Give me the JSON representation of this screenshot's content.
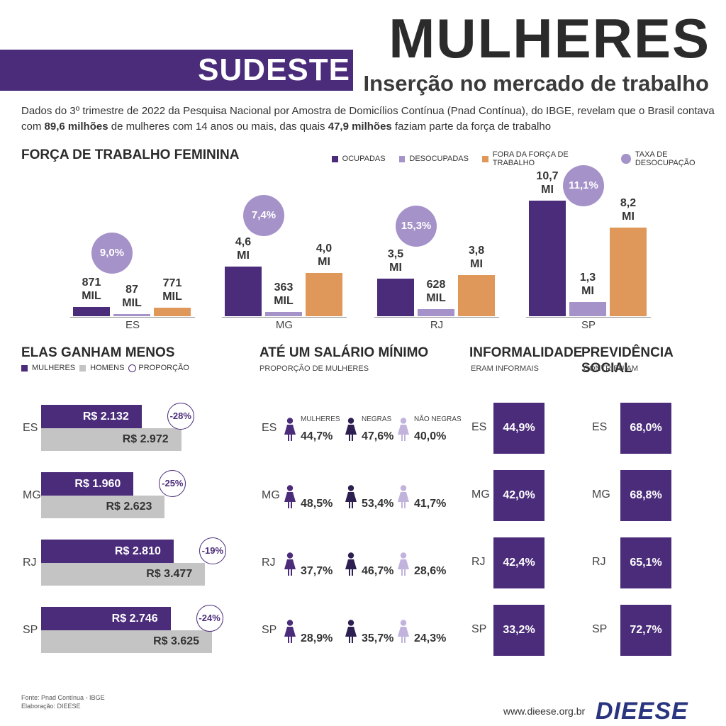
{
  "header": {
    "title": "MULHERES",
    "subtitle": "Inserção no mercado de trabalho",
    "region": "SUDESTE"
  },
  "intro": {
    "part1": "Dados do 3º trimestre de 2022 da Pesquisa Nacional por Amostra de Domicílios Contínua (Pnad Contínua), do IBGE, revelam que o Brasil contava com ",
    "bold1": "89,6 milhões",
    "part2": " de mulheres com 14 anos ou mais, das quais ",
    "bold2": "47,9 milhões",
    "part3": " faziam parte da força de trabalho"
  },
  "colors": {
    "ocupadas": "#4a2c7a",
    "desocupadas": "#a592c9",
    "fora": "#e0985a",
    "taxa": "#a592c9",
    "homens": "#c4c4c4"
  },
  "chart_data": [
    {
      "type": "bar",
      "title": "FORÇA DE TRABALHO FEMININA",
      "categories": [
        "ES",
        "MG",
        "RJ",
        "SP"
      ],
      "series": [
        {
          "name": "OCUPADAS",
          "values": [
            0.871,
            4.6,
            3.5,
            10.7
          ],
          "labels": [
            "871 MIL",
            "4,6 MI",
            "3,5 MI",
            "10,7 MI"
          ]
        },
        {
          "name": "DESOCUPADAS",
          "values": [
            0.087,
            0.363,
            0.628,
            1.3
          ],
          "labels": [
            "87 MIL",
            "363 MIL",
            "628 MIL",
            "1,3 MI"
          ]
        },
        {
          "name": "FORA DA FORÇA DE TRABALHO",
          "values": [
            0.771,
            4.0,
            3.8,
            8.2
          ],
          "labels": [
            "771 MIL",
            "4,0 MI",
            "3,8 MI",
            "8,2 MI"
          ]
        }
      ],
      "rate": {
        "name": "TAXA DE DESOCUPAÇÃO",
        "values": [
          "9,0%",
          "7,4%",
          "15,3%",
          "11,1%"
        ]
      },
      "unit": "milhões",
      "legend": "top-right"
    },
    {
      "type": "bar",
      "title": "ELAS GANHAM MENOS",
      "orientation": "horizontal",
      "categories": [
        "ES",
        "MG",
        "RJ",
        "SP"
      ],
      "series": [
        {
          "name": "MULHERES",
          "values": [
            2132,
            1960,
            2810,
            2746
          ],
          "labels": [
            "R$ 2.132",
            "R$ 1.960",
            "R$ 2.810",
            "R$ 2.746"
          ]
        },
        {
          "name": "HOMENS",
          "values": [
            2972,
            2623,
            3477,
            3625
          ],
          "labels": [
            "R$ 2.972",
            "R$ 2.623",
            "R$ 3.477",
            "R$ 3.625"
          ]
        }
      ],
      "proportion": {
        "name": "PROPORÇÃO",
        "values": [
          "-28%",
          "-25%",
          "-19%",
          "-24%"
        ]
      },
      "legend": "top-left"
    },
    {
      "type": "table",
      "title": "ATÉ UM SALÁRIO MÍNIMO",
      "subtitle": "PROPORÇÃO DE MULHERES",
      "columns": [
        "MULHERES",
        "NEGRAS",
        "NÃO NEGRAS"
      ],
      "rows": [
        {
          "state": "ES",
          "values": [
            "44,7%",
            "47,6%",
            "40,0%"
          ]
        },
        {
          "state": "MG",
          "values": [
            "48,5%",
            "53,4%",
            "41,7%"
          ]
        },
        {
          "state": "RJ",
          "values": [
            "37,7%",
            "46,7%",
            "28,6%"
          ]
        },
        {
          "state": "SP",
          "values": [
            "28,9%",
            "35,7%",
            "24,3%"
          ]
        }
      ]
    },
    {
      "type": "table",
      "title": "INFORMALIDADE",
      "subtitle": "ERAM INFORMAIS",
      "rows": [
        {
          "state": "ES",
          "value": "44,9%"
        },
        {
          "state": "MG",
          "value": "42,0%"
        },
        {
          "state": "RJ",
          "value": "42,4%"
        },
        {
          "state": "SP",
          "value": "33,2%"
        }
      ]
    },
    {
      "type": "table",
      "title": "PREVIDÊNCIA SOCIAL",
      "subtitle": "CONTRIBUÍAM",
      "rows": [
        {
          "state": "ES",
          "value": "68,0%"
        },
        {
          "state": "MG",
          "value": "68,8%"
        },
        {
          "state": "RJ",
          "value": "65,1%"
        },
        {
          "state": "SP",
          "value": "72,7%"
        }
      ]
    }
  ],
  "footer": {
    "source": "Fonte: Pnad Contínua - IBGE",
    "credit": "Elaboração: DIEESE",
    "url": "www.dieese.org.br",
    "logo": "DIEESE"
  }
}
